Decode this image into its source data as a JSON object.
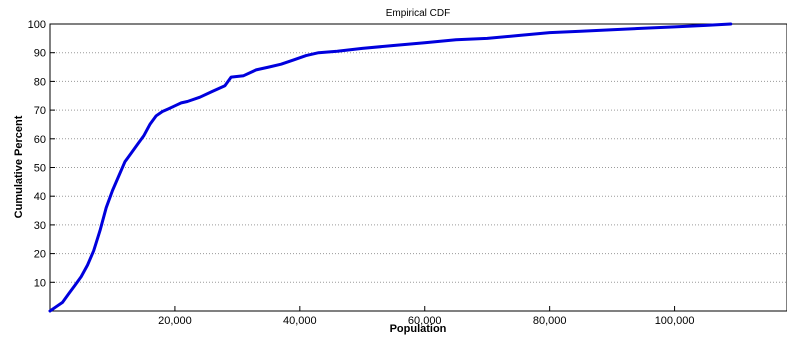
{
  "chart_data": {
    "type": "line",
    "title": "Empirical CDF",
    "xlabel": "Population",
    "ylabel": "Cumulative Percent",
    "xlim": [
      0,
      118000
    ],
    "ylim": [
      0,
      100
    ],
    "xticks": [
      20000,
      40000,
      60000,
      80000,
      100000
    ],
    "xtick_labels": [
      "20,000",
      "40,000",
      "60,000",
      "80,000",
      "100,000"
    ],
    "yticks": [
      10,
      20,
      30,
      40,
      50,
      60,
      70,
      80,
      90,
      100
    ],
    "ytick_labels": [
      "10",
      "20",
      "30",
      "40",
      "50",
      "60",
      "70",
      "80",
      "90",
      "100"
    ],
    "grid": "horizontal-dotted",
    "line_color": "#0000dd",
    "series": [
      {
        "x": [
          0,
          1000,
          2000,
          3000,
          4000,
          5000,
          6000,
          7000,
          8000,
          9000,
          10000,
          11000,
          12000,
          13000,
          14000,
          15000,
          16000,
          17000,
          18000,
          19000,
          20000,
          21000,
          22000,
          24000,
          26000,
          28000,
          29000,
          31000,
          33000,
          35000,
          37000,
          39000,
          41000,
          43000,
          46000,
          50000,
          55000,
          60000,
          65000,
          70000,
          75000,
          80000,
          85000,
          90000,
          95000,
          100000,
          105000,
          109000
        ],
        "y": [
          0,
          1.5,
          3,
          6,
          9,
          12,
          16,
          21,
          28,
          36,
          42,
          47,
          52,
          55,
          58,
          61,
          65,
          68,
          69.5,
          70.5,
          71.5,
          72.5,
          73,
          74.5,
          76.5,
          78.5,
          81.5,
          82,
          84,
          85,
          86,
          87.5,
          89,
          90,
          90.5,
          91.5,
          92.5,
          93.5,
          94.5,
          95,
          96,
          97,
          97.5,
          98,
          98.5,
          99,
          99.5,
          100
        ]
      }
    ]
  }
}
